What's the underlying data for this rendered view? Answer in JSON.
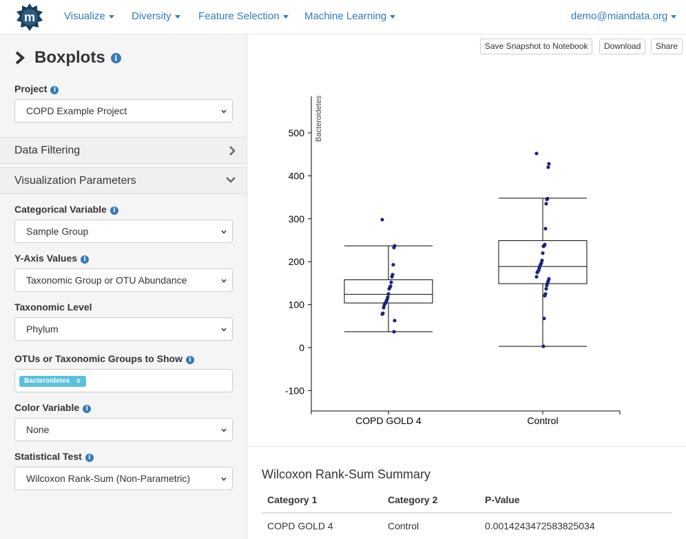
{
  "nav": {
    "items": [
      {
        "label": "Visualize"
      },
      {
        "label": "Diversity"
      },
      {
        "label": "Feature Selection"
      },
      {
        "label": "Machine Learning"
      }
    ],
    "user": "demo@miandata.org"
  },
  "sidebar": {
    "title": "Boxplots",
    "project_label": "Project",
    "project_value": "COPD Example Project",
    "data_filtering": "Data Filtering",
    "viz_params": "Visualization Parameters",
    "categorical_label": "Categorical Variable",
    "categorical_value": "Sample Group",
    "yaxis_label": "Y-Axis Values",
    "yaxis_value": "Taxonomic Group or OTU Abundance",
    "taxlevel_label": "Taxonomic Level",
    "taxlevel_value": "Phylum",
    "otus_label": "OTUs or Taxonomic Groups to Show",
    "otus_tag": "Bacteroidetes",
    "otus_tag_remove": "x",
    "color_label": "Color Variable",
    "color_value": "None",
    "stat_label": "Statistical Test",
    "stat_value": "Wilcoxon Rank-Sum (Non-Parametric)"
  },
  "toolbar": {
    "save_label": "Save Snapshot to Notebook",
    "download_label": "Download",
    "share_label": "Share"
  },
  "summary": {
    "title": "Wilcoxon Rank-Sum Summary",
    "headers": [
      "Category 1",
      "Category 2",
      "P-Value"
    ],
    "rows": [
      [
        "COPD GOLD 4",
        "Control",
        "0.0014243472583825034"
      ]
    ]
  },
  "chart_data": {
    "type": "box",
    "ylabel": "Bacteroidetes",
    "ylim": [
      -120,
      570
    ],
    "yticks": [
      "-100",
      "0",
      "100",
      "200",
      "300",
      "400",
      "500"
    ],
    "categories": [
      "COPD GOLD 4",
      "Control"
    ],
    "boxes": [
      {
        "category": "COPD GOLD 4",
        "whisker_low": 37,
        "q1": 104,
        "median": 124,
        "q3": 158,
        "whisker_high": 237
      },
      {
        "category": "Control",
        "whisker_low": 3,
        "q1": 149,
        "median": 189,
        "q3": 249,
        "whisker_high": 348
      }
    ],
    "points": [
      {
        "category": "COPD GOLD 4",
        "values": [
          298,
          237,
          233,
          193,
          170,
          165,
          152,
          143,
          140,
          137,
          125,
          117,
          112,
          108,
          105,
          103,
          99,
          93,
          80,
          78,
          63,
          37
        ]
      },
      {
        "category": "Control",
        "values": [
          452,
          428,
          420,
          347,
          345,
          335,
          277,
          240,
          237,
          236,
          220,
          203,
          197,
          194,
          190,
          185,
          180,
          177,
          175,
          165,
          160,
          155,
          150,
          145,
          137,
          125,
          121,
          68,
          3
        ]
      }
    ],
    "point_color": "#1a237e"
  }
}
